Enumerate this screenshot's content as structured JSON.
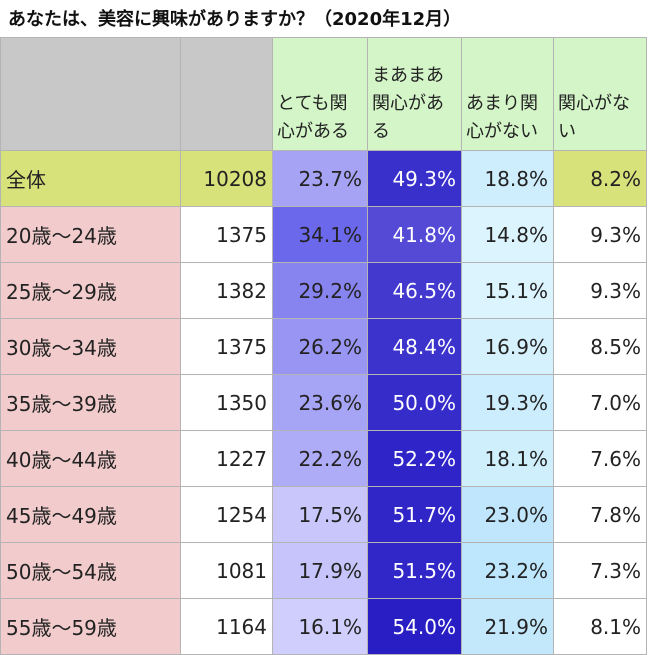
{
  "title": "あなたは、美容に興味がありますか？（2020年12月）",
  "chart_data": {
    "type": "table",
    "columns": [
      "",
      "",
      "とても関心がある",
      "まあまあ関心がある",
      "あまり関心がない",
      "関心がない"
    ],
    "rows": [
      {
        "label": "全体",
        "n": "10208",
        "values": [
          "23.7%",
          "49.3%",
          "18.8%",
          "8.2%"
        ],
        "nums": [
          23.7,
          49.3,
          18.8,
          8.2
        ]
      },
      {
        "label": "20歳～24歳",
        "n": "1375",
        "values": [
          "34.1%",
          "41.8%",
          "14.8%",
          "9.3%"
        ],
        "nums": [
          34.1,
          41.8,
          14.8,
          9.3
        ]
      },
      {
        "label": "25歳～29歳",
        "n": "1382",
        "values": [
          "29.2%",
          "46.5%",
          "15.1%",
          "9.3%"
        ],
        "nums": [
          29.2,
          46.5,
          15.1,
          9.3
        ]
      },
      {
        "label": "30歳～34歳",
        "n": "1375",
        "values": [
          "26.2%",
          "48.4%",
          "16.9%",
          "8.5%"
        ],
        "nums": [
          26.2,
          48.4,
          16.9,
          8.5
        ]
      },
      {
        "label": "35歳～39歳",
        "n": "1350",
        "values": [
          "23.6%",
          "50.0%",
          "19.3%",
          "7.0%"
        ],
        "nums": [
          23.6,
          50.0,
          19.3,
          7.0
        ]
      },
      {
        "label": "40歳～44歳",
        "n": "1227",
        "values": [
          "22.2%",
          "52.2%",
          "18.1%",
          "7.6%"
        ],
        "nums": [
          22.2,
          52.2,
          18.1,
          7.6
        ]
      },
      {
        "label": "45歳～49歳",
        "n": "1254",
        "values": [
          "17.5%",
          "51.7%",
          "23.0%",
          "7.8%"
        ],
        "nums": [
          17.5,
          51.7,
          23.0,
          7.8
        ]
      },
      {
        "label": "50歳～54歳",
        "n": "1081",
        "values": [
          "17.9%",
          "51.5%",
          "23.2%",
          "7.3%"
        ],
        "nums": [
          17.9,
          51.5,
          23.2,
          7.3
        ]
      },
      {
        "label": "55歳～59歳",
        "n": "1164",
        "values": [
          "16.1%",
          "54.0%",
          "21.9%",
          "8.1%"
        ],
        "nums": [
          16.1,
          54.0,
          21.9,
          8.1
        ]
      }
    ]
  },
  "colors": {
    "header_grey": "#c8c8c8",
    "header_green": "#d4f5c8",
    "total_row": "#d8e27a",
    "age_label": "#f2cccc"
  }
}
